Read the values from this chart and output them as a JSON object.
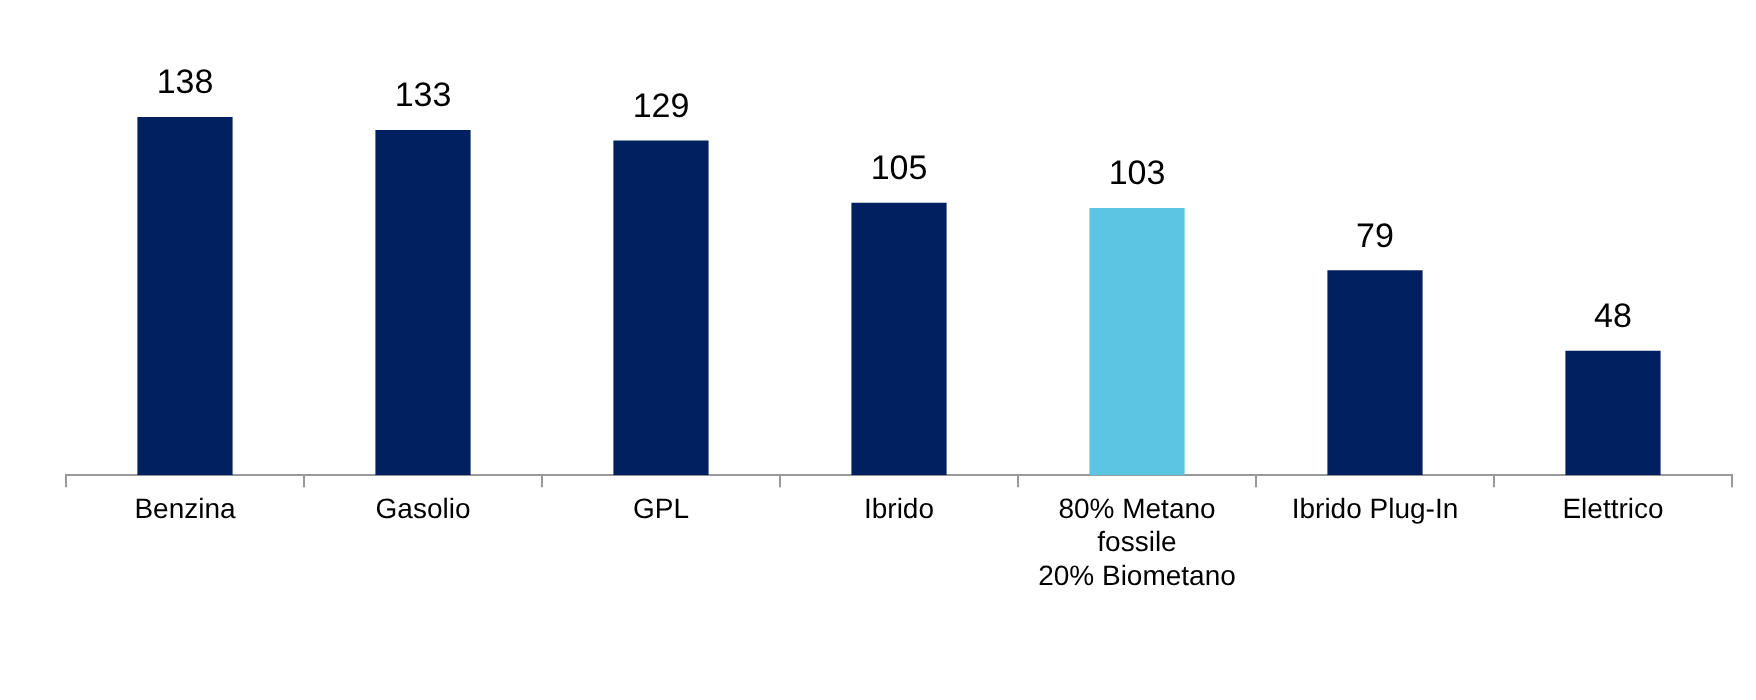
{
  "chart_data": {
    "type": "bar",
    "categories": [
      "Benzina",
      "Gasolio",
      "GPL",
      "Ibrido",
      "80% Metano\nfossile\n20% Biometano",
      "Ibrido Plug-In",
      "Elettrico"
    ],
    "values": [
      138,
      133,
      129,
      105,
      103,
      79,
      48
    ],
    "colors": [
      "#002060",
      "#002060",
      "#002060",
      "#002060",
      "#5bc5e3",
      "#002060",
      "#002060"
    ],
    "data_labels": true,
    "grid": false,
    "legend": false
  }
}
